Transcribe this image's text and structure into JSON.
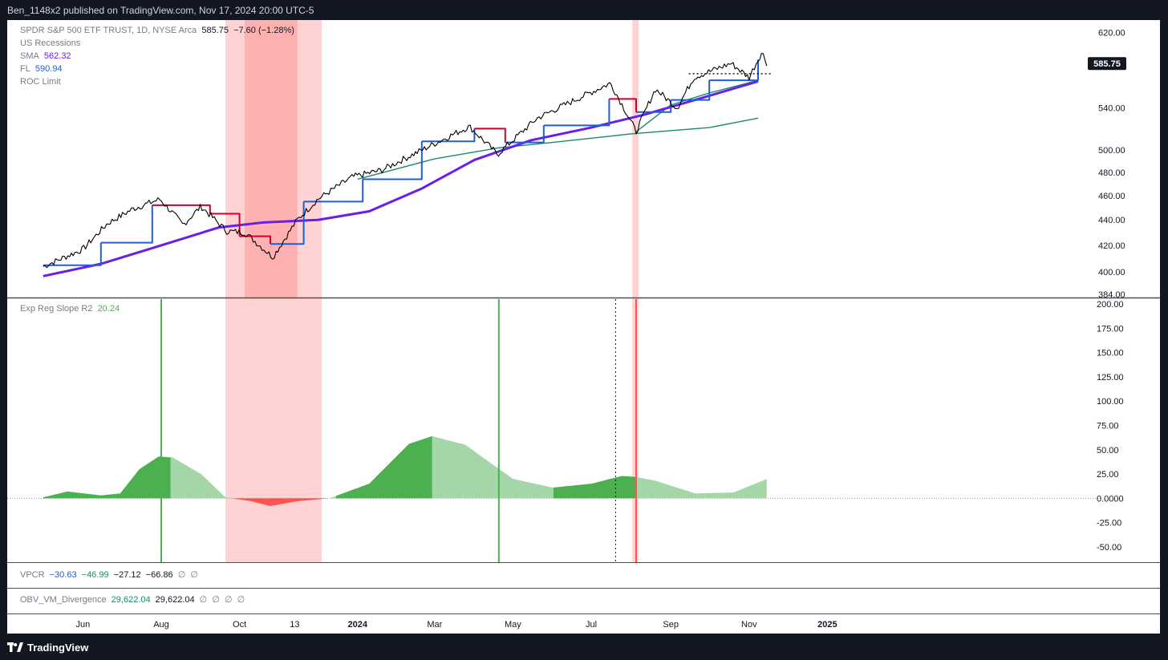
{
  "header": {
    "published": "Ben_1148x2 published on TradingView.com, Nov 17, 2024 20:00 UTC-5"
  },
  "legend": {
    "symbol": "SPDR S&P 500 ETF TRUST, 1D, NYSE Arca",
    "price": "585.75",
    "change": "−7.60 (−1.28%)",
    "recessions": "US Recessions",
    "sma_label": "SMA",
    "sma_value": "562.32",
    "fl_label": "FL",
    "fl_value": "590.94",
    "roc_label": "ROC Limit"
  },
  "osc_legend": {
    "label": "Exp Reg Slope R2",
    "value": "20.24"
  },
  "vpcr_legend": {
    "label": "VPCR",
    "v1": "−30.63",
    "v2": "−46.99",
    "v3": "−27.12",
    "v4": "−66.86",
    "v5": "∅",
    "v6": "∅"
  },
  "obv_legend": {
    "label": "OBV_VM_Divergence",
    "v1": "29,622.04",
    "v2": "29,622.04",
    "v3": "∅",
    "v4": "∅",
    "v5": "∅",
    "v6": "∅"
  },
  "price_badge": "585.75",
  "footer": {
    "brand": "TradingView"
  },
  "colors": {
    "price": "#000000",
    "sma": "#6a1fe8",
    "fl_up": "#1e5fd6",
    "fl_down": "#d1002a",
    "ema": "#1a8a6e",
    "recession": "#ff9e9e",
    "osc_dark": "#4caf50",
    "osc_light": "#a5d6a7",
    "osc_neg": "#ff5252"
  },
  "chart_data": [
    {
      "type": "line",
      "title": "SPDR S&P 500 ETF TRUST, 1D, NYSE Arca",
      "x_ticks": [
        "Jun",
        "Aug",
        "Oct",
        "13",
        "2024",
        "Mar",
        "May",
        "Jul",
        "Sep",
        "Nov",
        "2025"
      ],
      "y_ticks": [
        384,
        400,
        420,
        440,
        460,
        480,
        500,
        540,
        620
      ],
      "y_scale": "log",
      "ylim": [
        384,
        625
      ],
      "series": [
        {
          "name": "SMA",
          "last": 562.32,
          "points": [
            [
              "2023-05-01",
              397
            ],
            [
              "2023-06-15",
              406
            ],
            [
              "2023-08-01",
              420
            ],
            [
              "2023-09-15",
              434
            ],
            [
              "2023-10-20",
              438
            ],
            [
              "2023-12-01",
              440
            ],
            [
              "2024-01-10",
              447
            ],
            [
              "2024-02-20",
              466
            ],
            [
              "2024-04-01",
              491
            ],
            [
              "2024-05-15",
              509
            ],
            [
              "2024-07-01",
              521
            ],
            [
              "2024-08-10",
              533
            ],
            [
              "2024-09-20",
              548
            ],
            [
              "2024-11-08",
              567
            ]
          ]
        },
        {
          "name": "FL",
          "last": 590.94,
          "points": [
            [
              "2023-05-01",
              405
            ],
            [
              "2023-06-15",
              422
            ],
            [
              "2023-07-25",
              452
            ],
            [
              "2023-09-08",
              445
            ],
            [
              "2023-10-01",
              427
            ],
            [
              "2023-10-25",
              421
            ],
            [
              "2023-11-20",
              455
            ],
            [
              "2024-01-05",
              474
            ],
            [
              "2024-02-20",
              508
            ],
            [
              "2024-04-01",
              520
            ],
            [
              "2024-04-25",
              507
            ],
            [
              "2024-05-25",
              523
            ],
            [
              "2024-07-15",
              549
            ],
            [
              "2024-08-05",
              536
            ],
            [
              "2024-09-01",
              548
            ],
            [
              "2024-10-01",
              568
            ],
            [
              "2024-11-08",
              590
            ]
          ]
        },
        {
          "points": [
            [
              "2024-01-01",
              474
            ],
            [
              "2024-03-01",
              492
            ],
            [
              "2024-04-20",
              502
            ],
            [
              "2024-06-01",
              507
            ],
            [
              "2024-08-01",
              515
            ],
            [
              "2024-10-01",
              521
            ],
            [
              "2024-11-08",
              530
            ]
          ]
        },
        {
          "points": [
            [
              "2024-08-05",
              517
            ],
            [
              "2024-09-01",
              543
            ],
            [
              "2024-10-01",
              555
            ],
            [
              "2024-11-08",
              568
            ]
          ]
        },
        {
          "points": [
            [
              "2023-05-01",
              404
            ],
            [
              "2023-06-01",
              417
            ],
            [
              "2023-06-20",
              437
            ],
            [
              "2023-07-10",
              449
            ],
            [
              "2023-07-31",
              457
            ],
            [
              "2023-08-18",
              436
            ],
            [
              "2023-09-01",
              451
            ],
            [
              "2023-09-21",
              431
            ],
            [
              "2023-10-05",
              430
            ],
            [
              "2023-10-27",
              411
            ],
            [
              "2023-11-15",
              440
            ],
            [
              "2023-12-01",
              457
            ],
            [
              "2023-12-28",
              476
            ],
            [
              "2024-01-20",
              482
            ],
            [
              "2024-02-20",
              500
            ],
            [
              "2024-03-28",
              522
            ],
            [
              "2024-04-19",
              496
            ],
            [
              "2024-05-20",
              530
            ],
            [
              "2024-06-20",
              549
            ],
            [
              "2024-07-16",
              565
            ],
            [
              "2024-08-05",
              517
            ],
            [
              "2024-08-20",
              559
            ],
            [
              "2024-09-06",
              540
            ],
            [
              "2024-09-19",
              571
            ],
            [
              "2024-10-18",
              586
            ],
            [
              "2024-11-01",
              571
            ],
            [
              "2024-11-11",
              598
            ],
            [
              "2024-11-15",
              585.75
            ]
          ]
        }
      ],
      "recessions": [
        [
          "2023-09-20",
          "2023-12-04"
        ],
        [
          "2024-08-02",
          "2024-08-07"
        ]
      ],
      "annotations": [
        "price badge 585.75",
        "dotted line at 575 from 2024-09-15 to 2024-11-18"
      ]
    },
    {
      "type": "area",
      "title": "Exp Reg Slope R2",
      "value": 20.24,
      "y_ticks": [
        200,
        175,
        150,
        125,
        100,
        75,
        50,
        25,
        0,
        -25,
        -50
      ],
      "ylim": [
        -55,
        200
      ],
      "points": [
        [
          "2023-05-01",
          1
        ],
        [
          "2023-05-20",
          7
        ],
        [
          "2023-06-15",
          3
        ],
        [
          "2023-06-30",
          5
        ],
        [
          "2023-07-15",
          30
        ],
        [
          "2023-07-30",
          43
        ],
        [
          "2023-08-10",
          42
        ],
        [
          "2023-09-01",
          25
        ],
        [
          "2023-09-20",
          1
        ],
        [
          "2023-10-10",
          -3
        ],
        [
          "2023-10-25",
          -8
        ],
        [
          "2023-11-15",
          -3
        ],
        [
          "2023-12-10",
          0
        ],
        [
          "2024-01-10",
          15
        ],
        [
          "2024-02-10",
          56
        ],
        [
          "2024-02-28",
          64
        ],
        [
          "2024-03-25",
          55
        ],
        [
          "2024-04-15",
          35
        ],
        [
          "2024-05-01",
          20
        ],
        [
          "2024-06-01",
          11
        ],
        [
          "2024-07-01",
          15
        ],
        [
          "2024-07-25",
          23
        ],
        [
          "2024-08-05",
          22
        ],
        [
          "2024-08-20",
          18
        ],
        [
          "2024-09-20",
          5
        ],
        [
          "2024-10-20",
          6
        ],
        [
          "2024-11-15",
          20
        ]
      ],
      "vertical_lines": [
        {
          "date": "2023-08-01",
          "style": "green"
        },
        {
          "date": "2024-04-20",
          "style": "green"
        },
        {
          "date": "2024-07-20",
          "style": "dotted"
        },
        {
          "date": "2024-08-05",
          "style": "red"
        }
      ]
    }
  ]
}
